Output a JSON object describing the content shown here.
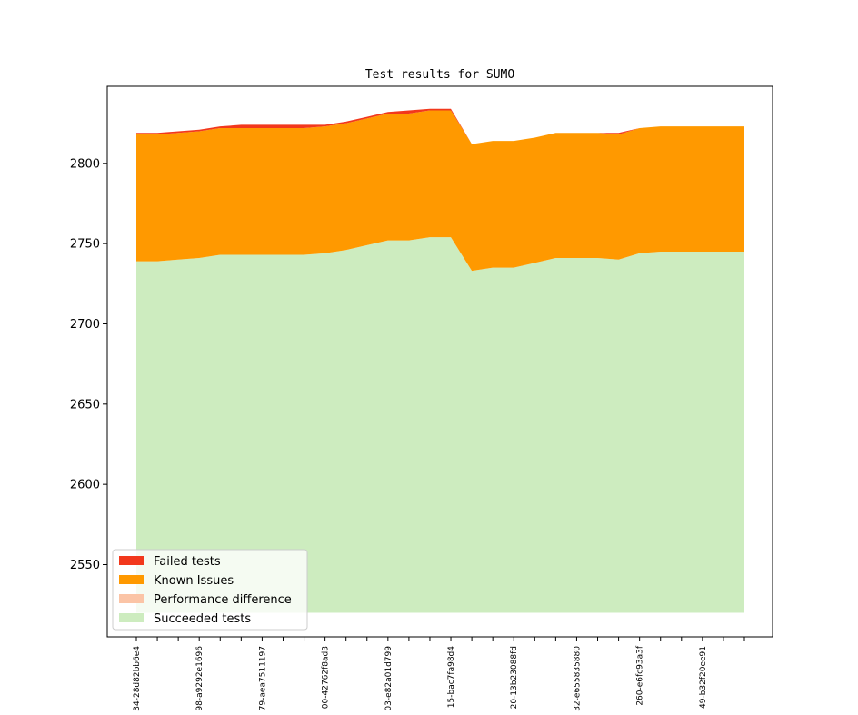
{
  "chart_data": {
    "type": "area",
    "title": "Test results for SUMO",
    "xlabel": "",
    "ylabel": "",
    "ylim": [
      2505,
      2848
    ],
    "yticks": [
      2550,
      2600,
      2650,
      2700,
      2750,
      2800
    ],
    "baseline": 2520,
    "x_count": 30,
    "xtick_labels": [
      {
        "index": 0,
        "label": "34-28d82bb6e4"
      },
      {
        "index": 3,
        "label": "98-a9292e1696"
      },
      {
        "index": 6,
        "label": "79-aea7511197"
      },
      {
        "index": 9,
        "label": "00-42762f8ad3"
      },
      {
        "index": 12,
        "label": "03-e82a01d799"
      },
      {
        "index": 15,
        "label": "15-bac7fa98d4"
      },
      {
        "index": 18,
        "label": "20-13b23088fd"
      },
      {
        "index": 21,
        "label": "32-e655835880"
      },
      {
        "index": 24,
        "label": "260-e6fc93a3f"
      },
      {
        "index": 27,
        "label": "49-b32f20ee91"
      }
    ],
    "legend_position": "lower-left",
    "series": [
      {
        "name": "Succeeded tests",
        "color": "#cdecbf",
        "values": [
          219,
          219,
          220,
          221,
          223,
          223,
          223,
          223,
          223,
          224,
          226,
          229,
          232,
          232,
          234,
          234,
          213,
          215,
          215,
          218,
          221,
          221,
          221,
          220,
          224,
          225,
          225,
          225,
          225,
          225
        ]
      },
      {
        "name": "Performance difference",
        "color": "#fbc4a6",
        "values": [
          0,
          0,
          0,
          0,
          0,
          0,
          0,
          0,
          0,
          0,
          0,
          0,
          0,
          0,
          0,
          0,
          0,
          0,
          0,
          0,
          0,
          0,
          0,
          0,
          0,
          0,
          0,
          0,
          0,
          0
        ]
      },
      {
        "name": "Known Issues",
        "color": "#ff9900",
        "values": [
          79,
          79,
          79,
          79,
          79,
          79,
          79,
          79,
          79,
          79,
          79,
          79,
          79,
          79,
          79,
          79,
          79,
          79,
          79,
          78,
          78,
          78,
          78,
          78,
          78,
          78,
          78,
          78,
          78,
          78
        ]
      },
      {
        "name": "Failed tests",
        "color": "#f2381c",
        "values": [
          1,
          1,
          1,
          1,
          1,
          2,
          2,
          2,
          2,
          1,
          1,
          1,
          1,
          2,
          1,
          1,
          0,
          0,
          0,
          0,
          0,
          0,
          0,
          1,
          0,
          0,
          0,
          0,
          0,
          0
        ]
      }
    ]
  }
}
